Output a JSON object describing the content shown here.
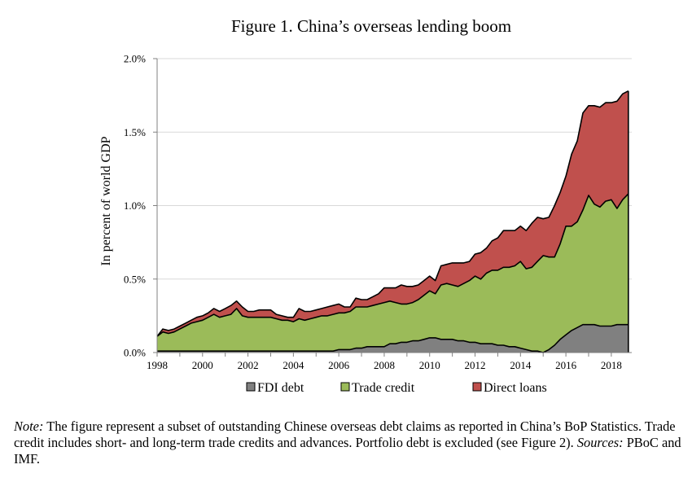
{
  "figure": {
    "title": "Figure 1. China’s overseas lending boom",
    "note_label": "Note:",
    "note_text": " The figure represent a subset of outstanding Chinese overseas debt claims as reported in China’s BoP Statistics. Trade credit includes short- and long-term trade credits and advances. Portfolio debt is excluded (see Figure 2). ",
    "sources_label": "Sources:",
    "sources_text": " PBoC and IMF."
  },
  "colors": {
    "fdi": "#808080",
    "trade": "#9bbb59",
    "loans": "#c0504d",
    "line": "#000000",
    "axis": "#808080"
  },
  "chart_data": {
    "type": "area",
    "stacked": true,
    "title": "Figure 1. China’s overseas lending boom",
    "ylabel": "In percent of world GDP",
    "xlabel": "",
    "xlim": [
      1998,
      2018.9
    ],
    "ylim": [
      0,
      2.0
    ],
    "yticks": [
      0,
      0.5,
      1.0,
      1.5,
      2.0
    ],
    "ytick_labels": [
      "0.0%",
      "0.5%",
      "1.0%",
      "1.5%",
      "2.0%"
    ],
    "xticks": [
      1998,
      2000,
      2002,
      2004,
      2006,
      2008,
      2010,
      2012,
      2014,
      2016,
      2018
    ],
    "xtick_labels": [
      "1998",
      "2000",
      "2002",
      "2004",
      "2006",
      "2008",
      "2010",
      "2012",
      "2014",
      "2016",
      "2018"
    ],
    "legend": [
      "FDI debt",
      "Trade credit",
      "Direct loans"
    ],
    "legend_position": "bottom",
    "x": [
      1998.0,
      1998.25,
      1998.5,
      1998.75,
      1999.0,
      1999.25,
      1999.5,
      1999.75,
      2000.0,
      2000.25,
      2000.5,
      2000.75,
      2001.0,
      2001.25,
      2001.5,
      2001.75,
      2002.0,
      2002.25,
      2002.5,
      2002.75,
      2003.0,
      2003.25,
      2003.5,
      2003.75,
      2004.0,
      2004.25,
      2004.5,
      2004.75,
      2005.0,
      2005.25,
      2005.5,
      2005.75,
      2006.0,
      2006.25,
      2006.5,
      2006.75,
      2007.0,
      2007.25,
      2007.5,
      2007.75,
      2008.0,
      2008.25,
      2008.5,
      2008.75,
      2009.0,
      2009.25,
      2009.5,
      2009.75,
      2010.0,
      2010.25,
      2010.5,
      2010.75,
      2011.0,
      2011.25,
      2011.5,
      2011.75,
      2012.0,
      2012.25,
      2012.5,
      2012.75,
      2013.0,
      2013.25,
      2013.5,
      2013.75,
      2014.0,
      2014.25,
      2014.5,
      2014.75,
      2015.0,
      2015.25,
      2015.5,
      2015.75,
      2016.0,
      2016.25,
      2016.5,
      2016.75,
      2017.0,
      2017.25,
      2017.5,
      2017.75,
      2018.0,
      2018.25,
      2018.5,
      2018.75
    ],
    "series": [
      {
        "name": "FDI debt",
        "values": [
          0.01,
          0.01,
          0.01,
          0.01,
          0.01,
          0.01,
          0.01,
          0.01,
          0.01,
          0.01,
          0.01,
          0.01,
          0.01,
          0.01,
          0.01,
          0.01,
          0.01,
          0.01,
          0.01,
          0.01,
          0.01,
          0.01,
          0.01,
          0.01,
          0.01,
          0.01,
          0.01,
          0.01,
          0.01,
          0.01,
          0.01,
          0.01,
          0.02,
          0.02,
          0.02,
          0.03,
          0.03,
          0.04,
          0.04,
          0.04,
          0.04,
          0.06,
          0.06,
          0.07,
          0.07,
          0.08,
          0.08,
          0.09,
          0.1,
          0.1,
          0.09,
          0.09,
          0.09,
          0.08,
          0.08,
          0.07,
          0.07,
          0.06,
          0.06,
          0.06,
          0.05,
          0.05,
          0.04,
          0.04,
          0.03,
          0.02,
          0.01,
          0.01,
          0.0,
          0.02,
          0.05,
          0.09,
          0.12,
          0.15,
          0.17,
          0.19,
          0.19,
          0.19,
          0.18,
          0.18,
          0.18,
          0.19,
          0.19,
          0.19
        ]
      },
      {
        "name": "Trade credit",
        "values": [
          0.1,
          0.13,
          0.12,
          0.13,
          0.15,
          0.17,
          0.19,
          0.2,
          0.21,
          0.23,
          0.25,
          0.23,
          0.24,
          0.25,
          0.29,
          0.24,
          0.23,
          0.23,
          0.23,
          0.23,
          0.23,
          0.22,
          0.21,
          0.21,
          0.2,
          0.22,
          0.21,
          0.22,
          0.23,
          0.24,
          0.24,
          0.25,
          0.25,
          0.25,
          0.26,
          0.28,
          0.28,
          0.27,
          0.28,
          0.29,
          0.3,
          0.29,
          0.28,
          0.26,
          0.26,
          0.26,
          0.28,
          0.3,
          0.32,
          0.3,
          0.37,
          0.38,
          0.37,
          0.37,
          0.39,
          0.42,
          0.45,
          0.44,
          0.48,
          0.5,
          0.51,
          0.53,
          0.54,
          0.55,
          0.59,
          0.55,
          0.57,
          0.61,
          0.66,
          0.63,
          0.6,
          0.65,
          0.74,
          0.71,
          0.72,
          0.78,
          0.88,
          0.82,
          0.81,
          0.85,
          0.86,
          0.79,
          0.85,
          0.89
        ]
      },
      {
        "name": "Direct loans",
        "values": [
          0.0,
          0.02,
          0.02,
          0.02,
          0.02,
          0.02,
          0.02,
          0.03,
          0.03,
          0.03,
          0.04,
          0.04,
          0.05,
          0.06,
          0.05,
          0.06,
          0.04,
          0.04,
          0.05,
          0.05,
          0.05,
          0.03,
          0.03,
          0.02,
          0.03,
          0.07,
          0.06,
          0.05,
          0.05,
          0.05,
          0.06,
          0.06,
          0.06,
          0.04,
          0.03,
          0.06,
          0.05,
          0.05,
          0.06,
          0.07,
          0.1,
          0.09,
          0.1,
          0.13,
          0.12,
          0.11,
          0.1,
          0.1,
          0.1,
          0.09,
          0.13,
          0.13,
          0.15,
          0.16,
          0.14,
          0.13,
          0.15,
          0.18,
          0.17,
          0.2,
          0.22,
          0.25,
          0.25,
          0.24,
          0.24,
          0.26,
          0.3,
          0.3,
          0.25,
          0.27,
          0.35,
          0.35,
          0.34,
          0.49,
          0.55,
          0.66,
          0.61,
          0.67,
          0.68,
          0.67,
          0.66,
          0.73,
          0.72,
          0.7
        ]
      }
    ]
  }
}
